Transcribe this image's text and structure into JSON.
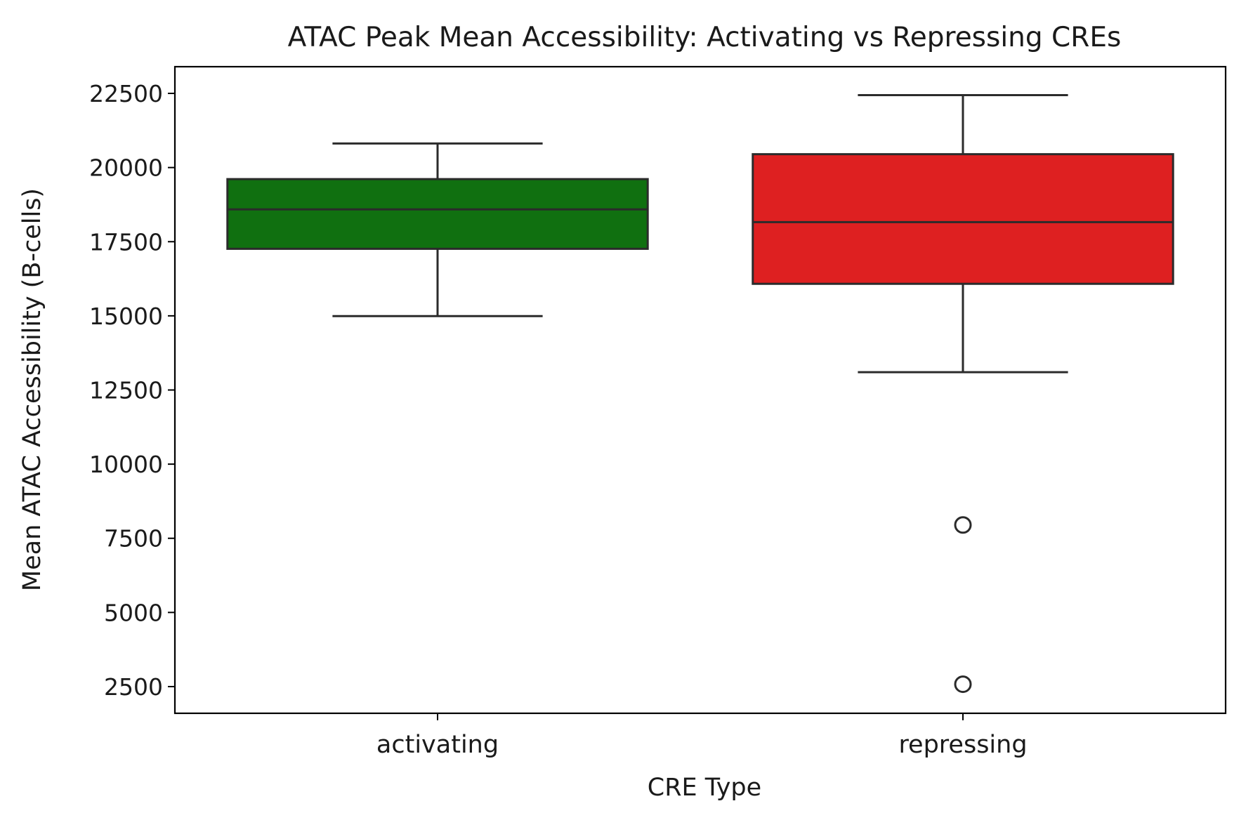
{
  "chart_data": {
    "type": "box",
    "title": "ATAC Peak Mean Accessibility: Activating vs Repressing CREs",
    "xlabel": "CRE Type",
    "ylabel": "Mean ATAC Accessibility (B-cells)",
    "ylim": [
      1600,
      23400
    ],
    "yticks": [
      2500,
      5000,
      7500,
      10000,
      12500,
      15000,
      17500,
      20000,
      22500
    ],
    "grid": false,
    "categories": [
      "activating",
      "repressing"
    ],
    "boxes": [
      {
        "category": "activating",
        "color": "#107010",
        "whisker_low": 14990,
        "q1": 17260,
        "median": 18590,
        "q3": 19610,
        "whisker_high": 20810,
        "outliers": []
      },
      {
        "category": "repressing",
        "color": "#de2021",
        "whisker_low": 13100,
        "q1": 16080,
        "median": 18160,
        "q3": 20450,
        "whisker_high": 22440,
        "outliers": [
          7950,
          2580
        ]
      }
    ]
  }
}
